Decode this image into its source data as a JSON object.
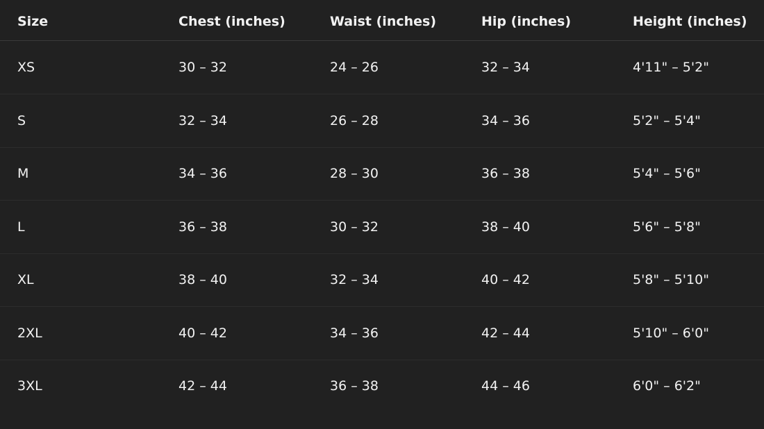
{
  "table": {
    "headers": [
      "Size",
      "Chest (inches)",
      "Waist (inches)",
      "Hip (inches)",
      "Height (inches)"
    ],
    "rows": [
      [
        "XS",
        "30 – 32",
        "24 – 26",
        "32 – 34",
        "4'11\" – 5'2\""
      ],
      [
        "S",
        "32 – 34",
        "26 – 28",
        "34 – 36",
        "5'2\" – 5'4\""
      ],
      [
        "M",
        "34 – 36",
        "28 – 30",
        "36 – 38",
        "5'4\" – 5'6\""
      ],
      [
        "L",
        "36 – 38",
        "30 – 32",
        "38 – 40",
        "5'6\" – 5'8\""
      ],
      [
        "XL",
        "38 – 40",
        "32 – 34",
        "40 – 42",
        "5'8\" – 5'10\""
      ],
      [
        "2XL",
        "40 – 42",
        "34 – 36",
        "42 – 44",
        "5'10\" – 6'0\""
      ],
      [
        "3XL",
        "42 – 44",
        "36 – 38",
        "44 – 46",
        "6'0\" – 6'2\""
      ]
    ]
  }
}
